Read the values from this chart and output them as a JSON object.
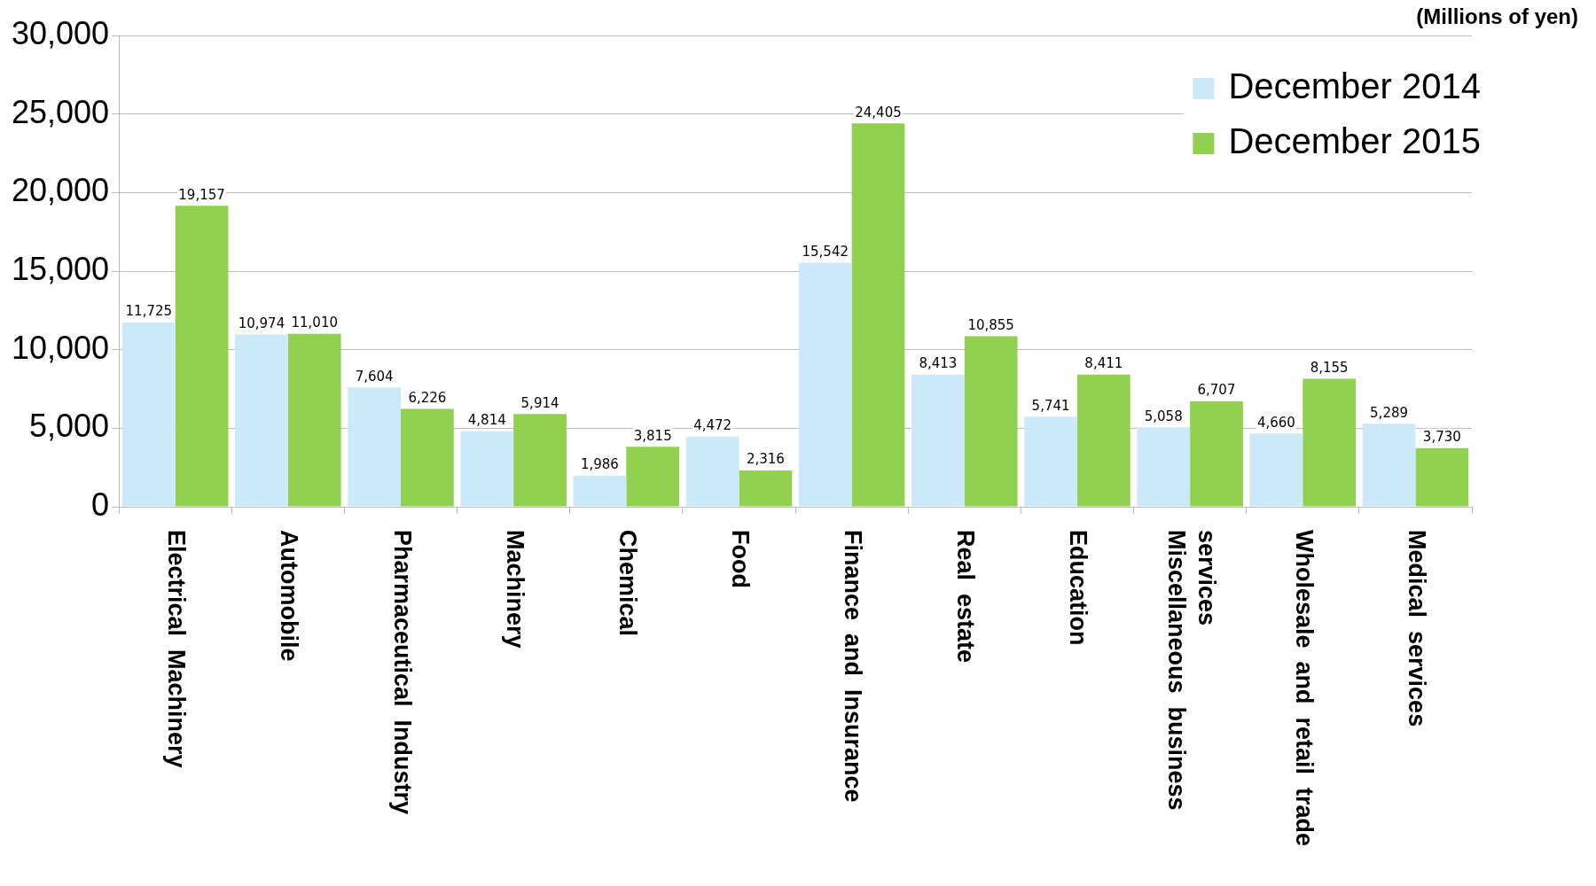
{
  "chart_data": {
    "type": "bar",
    "categories": [
      "Electrical Machinery",
      "Automobile",
      "Pharmaceutical Industry",
      "Machinery",
      "Chemical",
      "Food",
      "Finance and Insurance",
      "Real estate",
      "Education",
      "Miscellaneous business services",
      "Wholesale and retail trade",
      "Medical services"
    ],
    "series": [
      {
        "name": "December 2014",
        "color": "#cce9f9",
        "values": [
          11725,
          10974,
          7604,
          4814,
          1986,
          4472,
          15542,
          8413,
          5741,
          5058,
          4660,
          5289
        ],
        "value_labels": [
          "11,725",
          "10,974",
          "7,604",
          "4,814",
          "1,986",
          "4,472",
          "15,542",
          "8,413",
          "5,741",
          "5,058",
          "4,660",
          "5,289"
        ]
      },
      {
        "name": "December 2015",
        "color": "#92d050",
        "values": [
          19157,
          11010,
          6226,
          5914,
          3815,
          2316,
          24405,
          10855,
          8411,
          6707,
          8155,
          3730
        ],
        "value_labels": [
          "19,157",
          "11,010",
          "6,226",
          "5,914",
          "3,815",
          "2,316",
          "24,405",
          "10,855",
          "8,411",
          "6,707",
          "8,155",
          "3,730"
        ]
      }
    ],
    "ylim": [
      0,
      30000
    ],
    "yticks": [
      0,
      {
        "value": 5000,
        "label": "5,000"
      },
      {
        "value": 10000,
        "label": "10,000"
      },
      {
        "value": 15000,
        "label": "15,000"
      },
      {
        "value": 20000,
        "label": "20,000"
      },
      {
        "value": 25000,
        "label": "25,000"
      },
      {
        "value": 30000,
        "label": "30,000"
      }
    ],
    "annotations": [
      "(Millions of yen)"
    ],
    "grid": "y",
    "legend": "top right"
  }
}
